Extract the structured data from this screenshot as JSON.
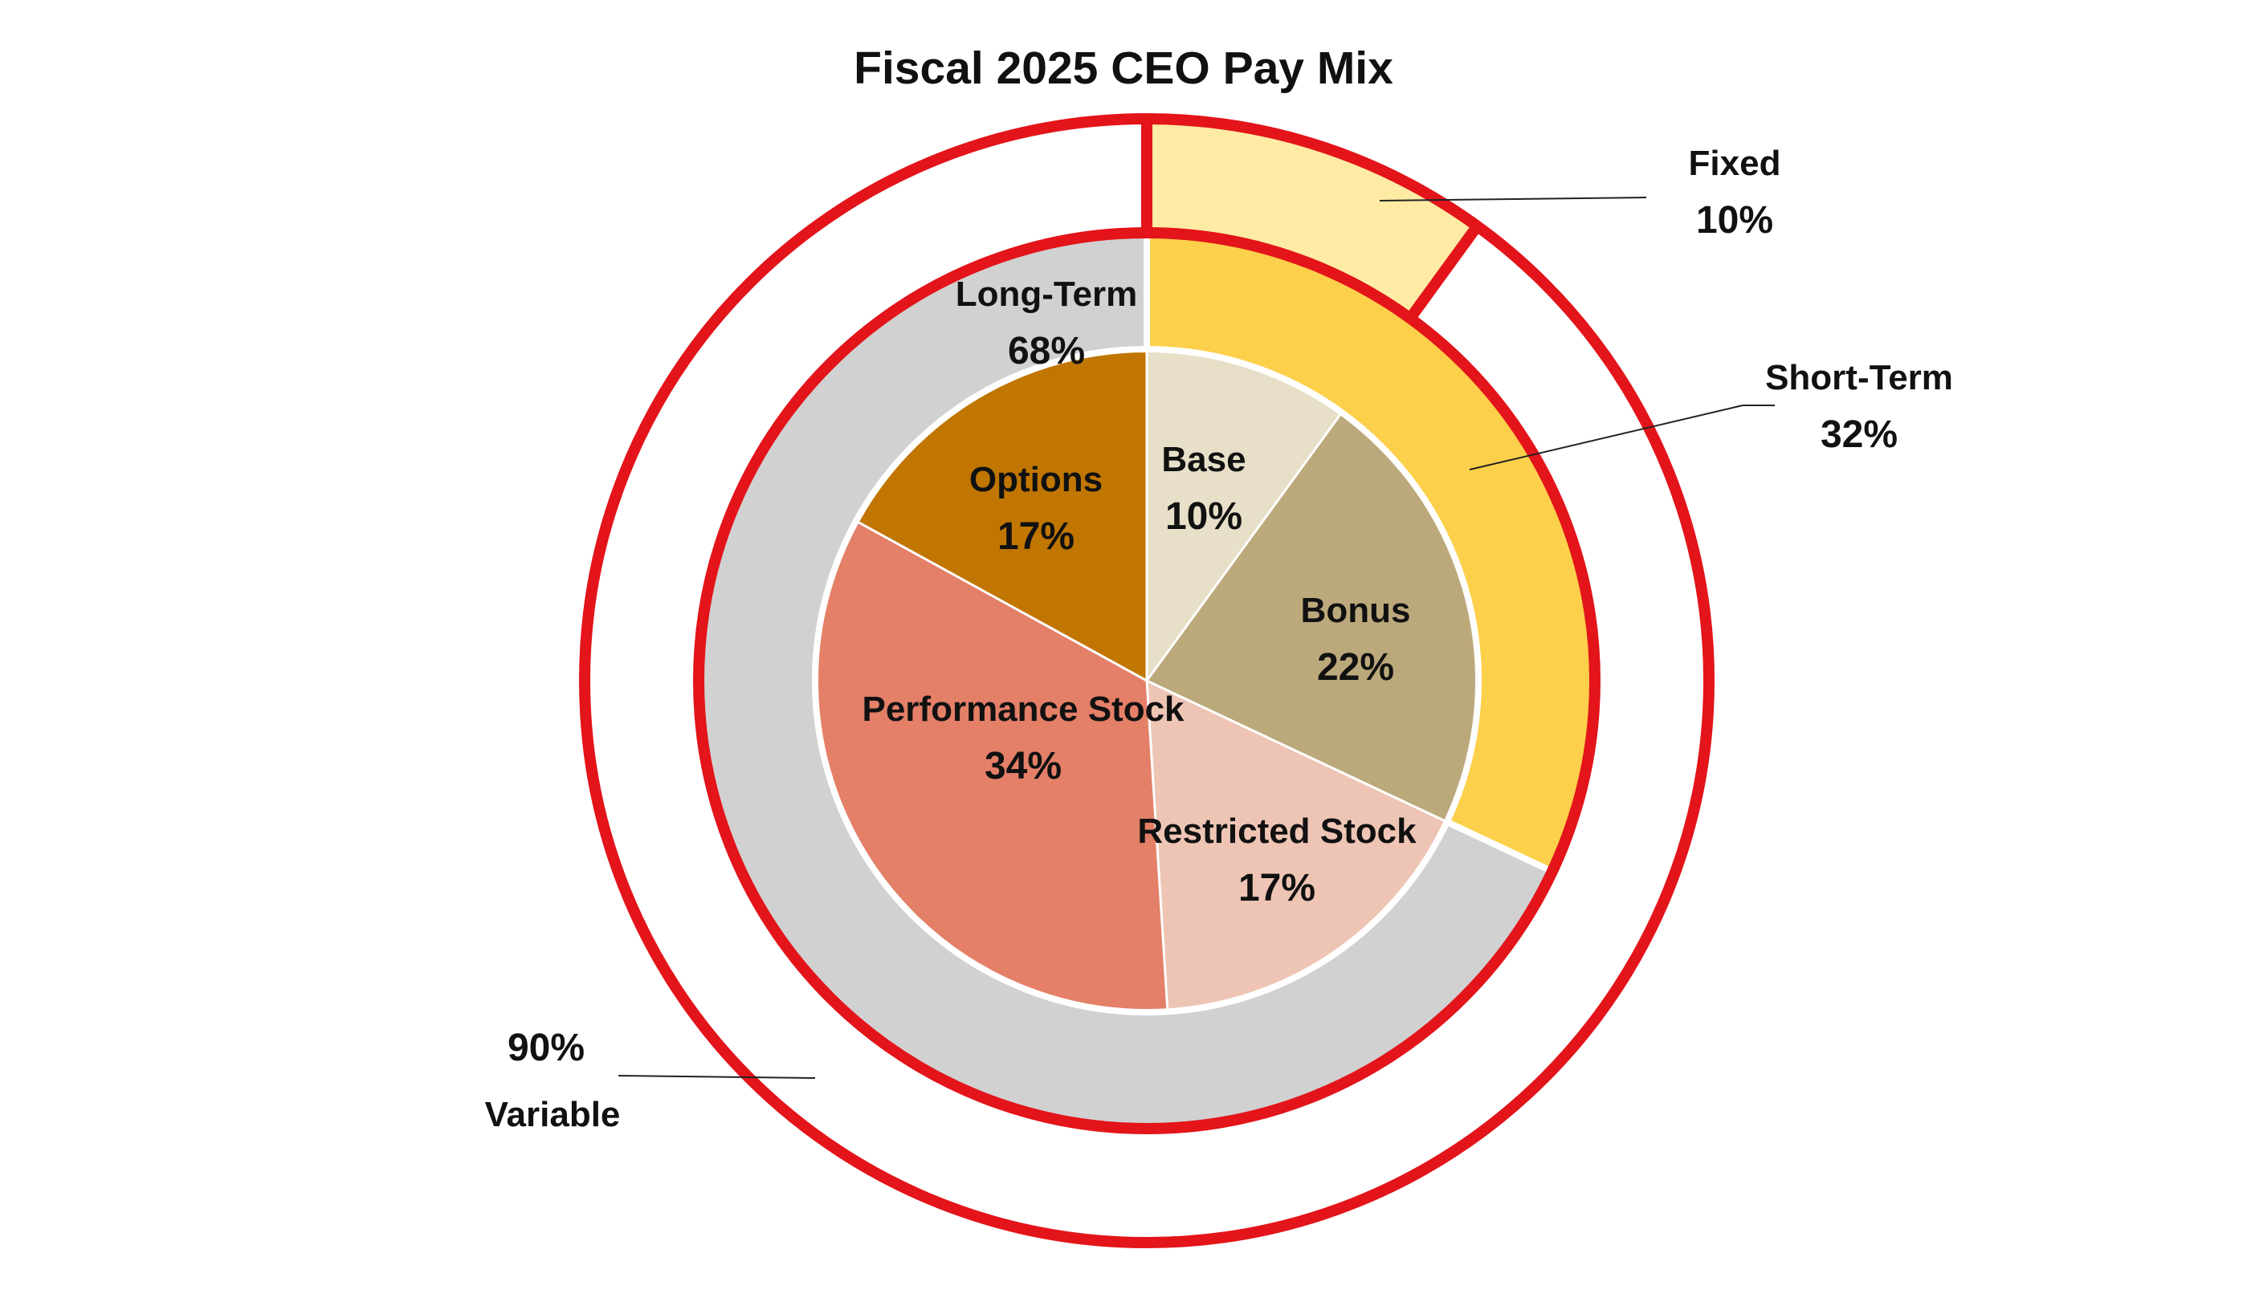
{
  "chart_data": {
    "type": "pie",
    "title": "Fiscal 2025 CEO Pay Mix",
    "colors": {
      "ring_border": "#e3141a",
      "separator": "#ffffff",
      "leader_line": "#222222",
      "text": "#111111"
    },
    "rings": [
      {
        "name": "inner",
        "slices": [
          {
            "label": "Base",
            "value": 10,
            "value_label": "10%",
            "color": "#e8dfc8"
          },
          {
            "label": "Bonus",
            "value": 22,
            "value_label": "22%",
            "color": "#bca97b"
          },
          {
            "label": "Restricted Stock",
            "value": 17,
            "value_label": "17%",
            "color": "#eec5b4"
          },
          {
            "label": "Performance Stock",
            "value": 34,
            "value_label": "34%",
            "color": "#e47f68"
          },
          {
            "label": "Options",
            "value": 17,
            "value_label": "17%",
            "color": "#c07600"
          }
        ]
      },
      {
        "name": "middle",
        "slices": [
          {
            "label": "Short-Term",
            "value": 32,
            "value_label": "32%",
            "color": "#fdd04b"
          },
          {
            "label": "Long-Term",
            "value": 68,
            "value_label": "68%",
            "color": "#d1d1d1"
          }
        ]
      },
      {
        "name": "outer",
        "slices": [
          {
            "label": "Fixed",
            "value": 10,
            "value_label": "10%",
            "color": "#ffeba3"
          },
          {
            "label": "Variable",
            "value": 90,
            "value_label": "90%",
            "color": "#ffffff"
          }
        ]
      }
    ]
  }
}
